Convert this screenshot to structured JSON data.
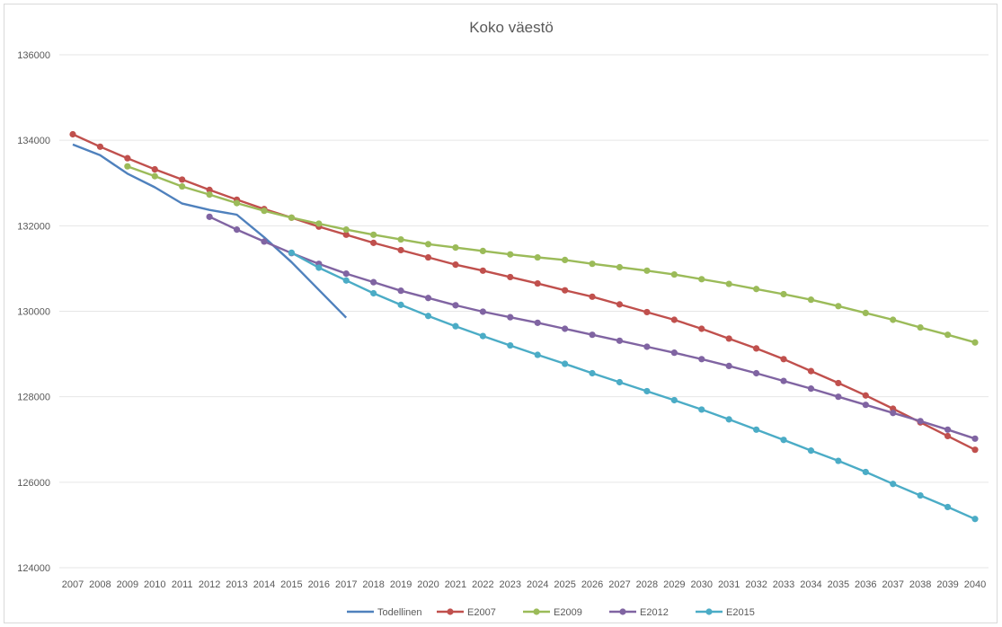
{
  "chart_data": {
    "type": "line",
    "title": "Koko väestö",
    "xlabel": "",
    "ylabel": "",
    "ylim": [
      124000,
      136000
    ],
    "yticks": [
      124000,
      126000,
      128000,
      130000,
      132000,
      134000,
      136000
    ],
    "grid": "horizontal",
    "legend_position": "bottom",
    "x": [
      2007,
      2008,
      2009,
      2010,
      2011,
      2012,
      2013,
      2014,
      2015,
      2016,
      2017,
      2018,
      2019,
      2020,
      2021,
      2022,
      2023,
      2024,
      2025,
      2026,
      2027,
      2028,
      2029,
      2030,
      2031,
      2032,
      2033,
      2034,
      2035,
      2036,
      2037,
      2038,
      2039,
      2040
    ],
    "series": [
      {
        "name": "Todellinen",
        "color": "#4f81bd",
        "markers": false,
        "x": [
          2007,
          2008,
          2009,
          2010,
          2011,
          2012,
          2013,
          2014,
          2015,
          2016,
          2017
        ],
        "values": [
          133900,
          133650,
          133220,
          132900,
          132520,
          132370,
          132260,
          131730,
          131150,
          130500,
          129850
        ]
      },
      {
        "name": "E2007",
        "color": "#c0504d",
        "markers": true,
        "x": [
          2007,
          2008,
          2009,
          2010,
          2011,
          2012,
          2013,
          2014,
          2015,
          2016,
          2017,
          2018,
          2019,
          2020,
          2021,
          2022,
          2023,
          2024,
          2025,
          2026,
          2027,
          2028,
          2029,
          2030,
          2031,
          2032,
          2033,
          2034,
          2035,
          2036,
          2037,
          2038,
          2039,
          2040
        ],
        "values": [
          134140,
          133850,
          133580,
          133320,
          133080,
          132840,
          132610,
          132390,
          132190,
          131980,
          131790,
          131600,
          131430,
          131260,
          131090,
          130950,
          130800,
          130650,
          130490,
          130340,
          130160,
          129980,
          129800,
          129590,
          129360,
          129130,
          128880,
          128600,
          128320,
          128030,
          127720,
          127400,
          127080,
          126760
        ]
      },
      {
        "name": "E2009",
        "color": "#9bbb59",
        "markers": true,
        "x": [
          2009,
          2010,
          2011,
          2012,
          2013,
          2014,
          2015,
          2016,
          2017,
          2018,
          2019,
          2020,
          2021,
          2022,
          2023,
          2024,
          2025,
          2026,
          2027,
          2028,
          2029,
          2030,
          2031,
          2032,
          2033,
          2034,
          2035,
          2036,
          2037,
          2038,
          2039,
          2040
        ],
        "values": [
          133390,
          133160,
          132920,
          132730,
          132530,
          132350,
          132190,
          132050,
          131910,
          131790,
          131680,
          131570,
          131490,
          131410,
          131330,
          131260,
          131200,
          131110,
          131030,
          130950,
          130860,
          130750,
          130640,
          130520,
          130400,
          130270,
          130120,
          129960,
          129800,
          129620,
          129450,
          129270
        ]
      },
      {
        "name": "E2012",
        "color": "#8064a2",
        "markers": true,
        "x": [
          2012,
          2013,
          2014,
          2015,
          2016,
          2017,
          2018,
          2019,
          2020,
          2021,
          2022,
          2023,
          2024,
          2025,
          2026,
          2027,
          2028,
          2029,
          2030,
          2031,
          2032,
          2033,
          2034,
          2035,
          2036,
          2037,
          2038,
          2039,
          2040
        ],
        "values": [
          132210,
          131910,
          131630,
          131360,
          131110,
          130880,
          130680,
          130480,
          130310,
          130140,
          129990,
          129860,
          129730,
          129590,
          129450,
          129310,
          129170,
          129030,
          128880,
          128720,
          128550,
          128370,
          128190,
          128000,
          127810,
          127620,
          127430,
          127230,
          127020
        ]
      },
      {
        "name": "E2015",
        "color": "#4bacc6",
        "markers": true,
        "x": [
          2015,
          2016,
          2017,
          2018,
          2019,
          2020,
          2021,
          2022,
          2023,
          2024,
          2025,
          2026,
          2027,
          2028,
          2029,
          2030,
          2031,
          2032,
          2033,
          2034,
          2035,
          2036,
          2037,
          2038,
          2039,
          2040
        ],
        "values": [
          131370,
          131020,
          130720,
          130420,
          130150,
          129890,
          129650,
          129420,
          129200,
          128980,
          128770,
          128550,
          128340,
          128130,
          127920,
          127700,
          127470,
          127230,
          126990,
          126740,
          126500,
          126240,
          125960,
          125690,
          125420,
          125140
        ]
      }
    ]
  }
}
